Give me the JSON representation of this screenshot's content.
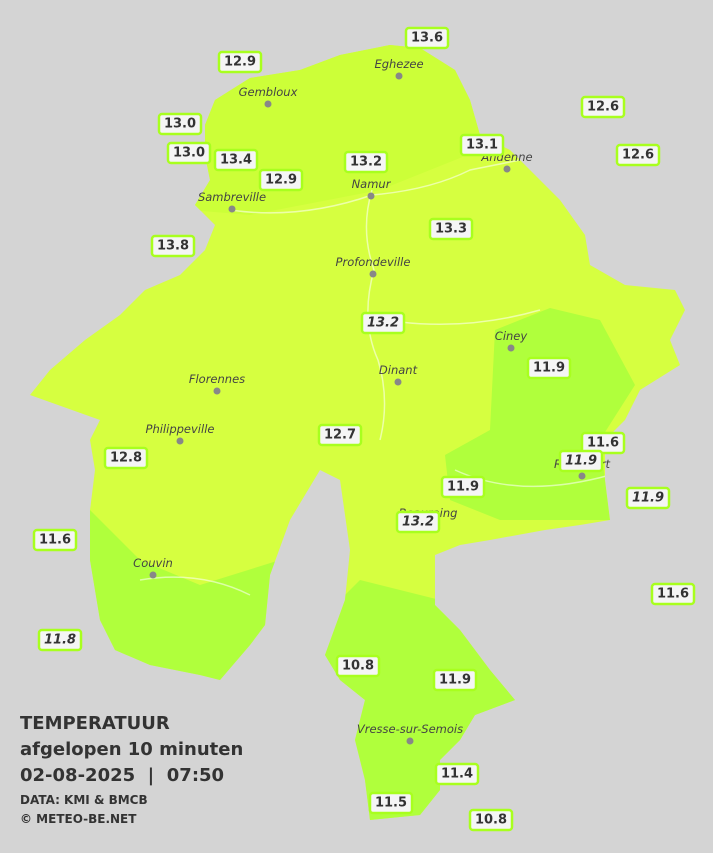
{
  "legend": {
    "title": "TEMPERATUUR",
    "subtitle": "afgelopen 10 minuten",
    "datetime": "02-08-2025  |  07:50",
    "source": "DATA: KMI & BMCB",
    "copyright": "© METEO-BE.NET"
  },
  "cities": [
    "Eghezee",
    "Gembloux",
    "Andenne",
    "Namur",
    "Sambreville",
    "Profondeville",
    "Ciney",
    "Dinant",
    "Florennes",
    "Philippeville",
    "Rochefort",
    "Beauraing",
    "Couvin",
    "Vresse-sur-Semois"
  ],
  "stations": [
    "13.6",
    "12.9",
    "12.6",
    "13.0",
    "13.1",
    "12.6",
    "13.0",
    "13.4",
    "13.2",
    "12.9",
    "13.8",
    "13.3",
    "13.2",
    "11.9",
    "12.7",
    "11.6",
    "11.9",
    "12.8",
    "11.9",
    "11.9",
    "13.2",
    "11.6",
    "11.6",
    "11.8",
    "10.8",
    "11.9",
    "11.4",
    "11.5",
    "10.8"
  ]
}
